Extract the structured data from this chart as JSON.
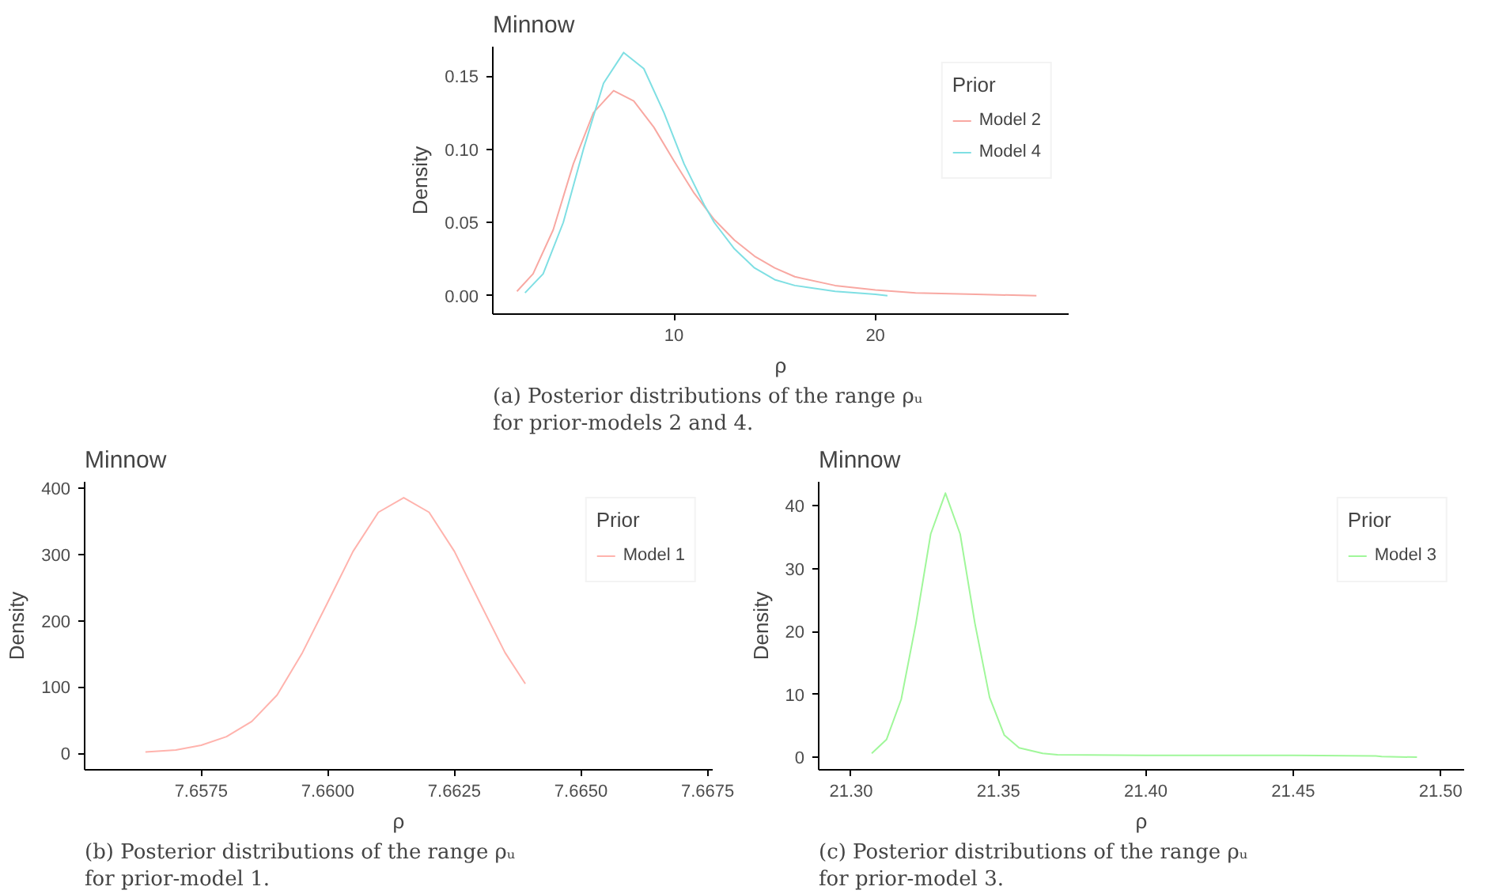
{
  "chart_data": [
    {
      "type": "line",
      "title": "Minnow",
      "xlabel": "ρ",
      "ylabel": "Density",
      "legend_title": "Prior",
      "legend": "top right",
      "grid": false,
      "xlim": [
        1,
        29.6
      ],
      "xticks": [
        10,
        20
      ],
      "ylim": [
        -0.0125,
        0.17
      ],
      "yticks": [
        {
          "value": 0,
          "label": "0.00"
        },
        {
          "value": 0.05,
          "label": "0.05"
        },
        {
          "value": 0.1,
          "label": "0.10"
        },
        {
          "value": 0.15,
          "label": "0.15"
        }
      ],
      "annotations": [
        "(a) Posterior distributions of the range ρᵤ\nfor prior-models 2 and 4."
      ],
      "series": [
        {
          "name": "Model 2",
          "color": "#f8a8a2",
          "x": [
            2.2,
            3,
            4,
            5,
            6,
            7,
            8,
            9,
            10,
            11,
            12,
            13,
            14,
            15,
            16,
            18,
            20,
            22,
            25,
            28
          ],
          "values": [
            0.003,
            0.015,
            0.045,
            0.09,
            0.125,
            0.14,
            0.133,
            0.115,
            0.092,
            0.07,
            0.052,
            0.038,
            0.027,
            0.019,
            0.013,
            0.007,
            0.004,
            0.002,
            0.001,
            0.0
          ]
        },
        {
          "name": "Model 4",
          "color": "#7fdfe3",
          "x": [
            2.6,
            3.5,
            4.5,
            5.5,
            6.5,
            7.5,
            8.5,
            9.5,
            10.5,
            11.5,
            12,
            13,
            14,
            15,
            16,
            18,
            20,
            20.6
          ],
          "values": [
            0.002,
            0.015,
            0.05,
            0.1,
            0.145,
            0.166,
            0.155,
            0.125,
            0.09,
            0.062,
            0.05,
            0.032,
            0.019,
            0.011,
            0.007,
            0.003,
            0.001,
            0.0
          ]
        }
      ]
    },
    {
      "type": "line",
      "title": "Minnow",
      "xlabel": "ρ",
      "ylabel": "Density",
      "legend_title": "Prior",
      "legend": "top right",
      "grid": false,
      "xlim": [
        7.6552,
        7.6676
      ],
      "ylim": [
        -25,
        410
      ],
      "xticks": [
        7.6575,
        {
          "value": 7.66,
          "label": "7.6600"
        },
        7.6625,
        {
          "value": 7.665,
          "label": "7.6650"
        },
        7.6675
      ],
      "yticks": [
        0,
        100,
        200,
        300,
        400
      ],
      "annotations": [
        "(b) Posterior distributions of the range ρᵤ\nfor prior-model 1."
      ],
      "series": [
        {
          "name": "Model 1",
          "color": "#ffb3ad",
          "x": [
            7.6564,
            7.657,
            7.6575,
            7.658,
            7.6585,
            7.659,
            7.6595,
            7.66,
            7.6605,
            7.661,
            7.6615,
            7.662,
            7.6625,
            7.663,
            7.6635,
            7.6639
          ],
          "values": [
            2,
            5,
            12,
            25,
            48,
            88,
            152,
            228,
            305,
            364,
            386,
            364,
            305,
            228,
            152,
            105
          ]
        }
      ]
    },
    {
      "type": "line",
      "title": "Minnow",
      "xlabel": "ρ",
      "ylabel": "Density",
      "legend_title": "Prior",
      "legend": "top right",
      "grid": false,
      "xlim": [
        21.289,
        21.508
      ],
      "ylim": [
        -2,
        43.8
      ],
      "xticks": [
        {
          "value": 21.3,
          "label": "21.30"
        },
        21.35,
        {
          "value": 21.4,
          "label": "21.40"
        },
        21.45,
        {
          "value": 21.5,
          "label": "21.50"
        }
      ],
      "yticks": [
        0,
        10,
        20,
        30,
        40
      ],
      "annotations": [
        "(c) Posterior distributions of the range ρᵤ\nfor prior-model 3."
      ],
      "series": [
        {
          "name": "Model 3",
          "color": "#a0f79a",
          "x": [
            21.307,
            21.312,
            21.317,
            21.322,
            21.327,
            21.332,
            21.337,
            21.342,
            21.347,
            21.352,
            21.357,
            21.365,
            21.37,
            21.4,
            21.45,
            21.478,
            21.48,
            21.492
          ],
          "values": [
            0.6,
            2.8,
            9.2,
            21.3,
            35.5,
            42,
            35.5,
            21.3,
            9.5,
            3.5,
            1.5,
            0.6,
            0.4,
            0.3,
            0.3,
            0.2,
            0.1,
            0.0
          ]
        }
      ]
    }
  ]
}
